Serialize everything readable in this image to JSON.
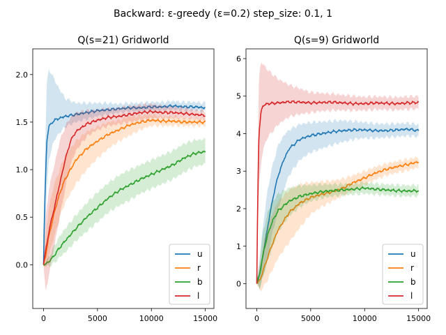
{
  "suptitle": "Backward: ε-greedy (ε=0.2) step_size: 0.1, 1",
  "chart_data": [
    {
      "type": "line",
      "title": "Q(s=21) Gridworld",
      "xlabel": "",
      "ylabel": "",
      "xlim": [
        -1000,
        15800
      ],
      "ylim": [
        -0.46,
        2.27
      ],
      "xticks": [
        0,
        5000,
        10000,
        15000
      ],
      "yticks": [
        0.0,
        0.5,
        1.0,
        1.5,
        2.0
      ],
      "xtick_labels": [
        "0",
        "5000",
        "10000",
        "15000"
      ],
      "ytick_labels": [
        "0.0",
        "0.5",
        "1.0",
        "1.5",
        "2.0"
      ],
      "grid": false,
      "legend_position": "lower-right",
      "series": [
        {
          "name": "u",
          "color": "#1f77b4",
          "x": [
            0,
            100,
            300,
            500,
            800,
            1200,
            2000,
            3000,
            4000,
            5000,
            6000,
            7000,
            8000,
            9000,
            10000,
            11000,
            12000,
            13000,
            14000,
            15000
          ],
          "y": [
            0.0,
            0.6,
            1.3,
            1.45,
            1.5,
            1.53,
            1.56,
            1.58,
            1.6,
            1.62,
            1.63,
            1.64,
            1.65,
            1.65,
            1.66,
            1.66,
            1.67,
            1.66,
            1.66,
            1.65
          ],
          "lower": [
            0.0,
            0.2,
            0.8,
            1.1,
            1.25,
            1.35,
            1.45,
            1.5,
            1.53,
            1.56,
            1.58,
            1.6,
            1.61,
            1.61,
            1.62,
            1.62,
            1.63,
            1.62,
            1.62,
            1.61
          ],
          "upper": [
            0.0,
            1.0,
            1.9,
            2.05,
            2.0,
            1.9,
            1.75,
            1.7,
            1.7,
            1.7,
            1.7,
            1.69,
            1.7,
            1.7,
            1.71,
            1.71,
            1.72,
            1.71,
            1.71,
            1.7
          ]
        },
        {
          "name": "r",
          "color": "#ff7f0e",
          "x": [
            0,
            200,
            500,
            1000,
            1500,
            2000,
            3000,
            4000,
            5000,
            6000,
            7000,
            8000,
            9000,
            10000,
            11000,
            12000,
            13000,
            14000,
            15000
          ],
          "y": [
            0.0,
            0.1,
            0.3,
            0.55,
            0.75,
            0.9,
            1.1,
            1.22,
            1.3,
            1.37,
            1.42,
            1.47,
            1.5,
            1.52,
            1.51,
            1.51,
            1.5,
            1.5,
            1.5
          ],
          "lower": [
            0.0,
            -0.05,
            0.1,
            0.3,
            0.5,
            0.65,
            0.85,
            1.0,
            1.12,
            1.22,
            1.3,
            1.36,
            1.42,
            1.46,
            1.46,
            1.46,
            1.46,
            1.46,
            1.46
          ],
          "upper": [
            0.0,
            0.3,
            0.6,
            0.85,
            1.0,
            1.15,
            1.3,
            1.4,
            1.45,
            1.5,
            1.52,
            1.56,
            1.57,
            1.58,
            1.56,
            1.56,
            1.55,
            1.54,
            1.54
          ]
        },
        {
          "name": "b",
          "color": "#2ca02c",
          "x": [
            0,
            500,
            1000,
            1500,
            2000,
            3000,
            4000,
            5000,
            6000,
            7000,
            8000,
            9000,
            10000,
            11000,
            12000,
            13000,
            14000,
            15000
          ],
          "y": [
            0.0,
            0.03,
            0.1,
            0.18,
            0.25,
            0.38,
            0.5,
            0.6,
            0.7,
            0.78,
            0.84,
            0.9,
            0.95,
            1.0,
            1.05,
            1.12,
            1.17,
            1.19
          ],
          "lower": [
            0.0,
            -0.02,
            0.02,
            0.08,
            0.13,
            0.25,
            0.35,
            0.45,
            0.55,
            0.62,
            0.68,
            0.75,
            0.8,
            0.85,
            0.9,
            0.97,
            1.03,
            1.06
          ],
          "upper": [
            0.0,
            0.08,
            0.2,
            0.3,
            0.38,
            0.52,
            0.65,
            0.76,
            0.86,
            0.94,
            1.0,
            1.05,
            1.1,
            1.15,
            1.2,
            1.27,
            1.31,
            1.32
          ]
        },
        {
          "name": "l",
          "color": "#d62728",
          "x": [
            0,
            200,
            500,
            1000,
            1500,
            2000,
            2500,
            3000,
            4000,
            5000,
            6000,
            7000,
            8000,
            9000,
            10000,
            11000,
            12000,
            13000,
            14000,
            15000
          ],
          "y": [
            0.0,
            0.15,
            0.35,
            0.6,
            0.85,
            1.1,
            1.3,
            1.4,
            1.48,
            1.52,
            1.55,
            1.56,
            1.58,
            1.6,
            1.61,
            1.6,
            1.6,
            1.59,
            1.58,
            1.57
          ],
          "lower": [
            0.0,
            -0.3,
            -0.1,
            0.2,
            0.5,
            0.8,
            1.05,
            1.2,
            1.35,
            1.42,
            1.46,
            1.48,
            1.5,
            1.52,
            1.54,
            1.54,
            1.54,
            1.54,
            1.53,
            1.52
          ],
          "upper": [
            0.0,
            0.5,
            0.8,
            1.05,
            1.3,
            1.45,
            1.55,
            1.6,
            1.62,
            1.63,
            1.64,
            1.65,
            1.67,
            1.68,
            1.69,
            1.67,
            1.66,
            1.65,
            1.63,
            1.62
          ]
        }
      ]
    },
    {
      "type": "line",
      "title": "Q(s=9) Gridworld",
      "xlabel": "",
      "ylabel": "",
      "xlim": [
        -1000,
        15800
      ],
      "ylim": [
        -0.66,
        6.26
      ],
      "xticks": [
        0,
        5000,
        10000,
        15000
      ],
      "yticks": [
        0,
        1,
        2,
        3,
        4,
        5,
        6
      ],
      "xtick_labels": [
        "0",
        "5000",
        "10000",
        "15000"
      ],
      "ytick_labels": [
        "0",
        "1",
        "2",
        "3",
        "4",
        "5",
        "6"
      ],
      "grid": false,
      "legend_position": "lower-right",
      "series": [
        {
          "name": "u",
          "color": "#1f77b4",
          "x": [
            0,
            300,
            600,
            1000,
            1500,
            2000,
            2500,
            3000,
            4000,
            5000,
            6000,
            7000,
            8000,
            9000,
            10000,
            11000,
            12000,
            13000,
            14000,
            15000
          ],
          "y": [
            0.0,
            0.3,
            0.8,
            1.5,
            2.3,
            2.9,
            3.3,
            3.6,
            3.85,
            3.95,
            4.0,
            4.05,
            4.08,
            4.1,
            4.1,
            4.08,
            4.08,
            4.1,
            4.12,
            4.08
          ],
          "lower": [
            0.0,
            -0.1,
            0.2,
            0.7,
            1.4,
            2.0,
            2.5,
            2.9,
            3.3,
            3.5,
            3.6,
            3.7,
            3.78,
            3.85,
            3.88,
            3.88,
            3.9,
            3.92,
            3.94,
            3.92
          ],
          "upper": [
            0.0,
            0.8,
            1.6,
            2.5,
            3.2,
            3.7,
            3.95,
            4.1,
            4.25,
            4.3,
            4.32,
            4.34,
            4.35,
            4.33,
            4.3,
            4.27,
            4.26,
            4.27,
            4.28,
            4.24
          ]
        },
        {
          "name": "r",
          "color": "#ff7f0e",
          "x": [
            0,
            300,
            600,
            1000,
            1500,
            2000,
            3000,
            4000,
            5000,
            6000,
            7000,
            8000,
            9000,
            10000,
            11000,
            12000,
            13000,
            14000,
            15000
          ],
          "y": [
            0.0,
            0.1,
            0.35,
            0.7,
            1.1,
            1.45,
            1.9,
            2.15,
            2.3,
            2.38,
            2.45,
            2.55,
            2.7,
            2.82,
            2.95,
            3.05,
            3.12,
            3.18,
            3.25
          ],
          "lower": [
            0.0,
            -0.2,
            -0.1,
            0.1,
            0.4,
            0.7,
            1.1,
            1.5,
            1.85,
            2.05,
            2.2,
            2.35,
            2.5,
            2.63,
            2.78,
            2.88,
            2.96,
            3.02,
            3.1
          ],
          "upper": [
            0.0,
            0.5,
            1.0,
            1.5,
            1.9,
            2.2,
            2.5,
            2.65,
            2.7,
            2.72,
            2.75,
            2.8,
            2.9,
            3.0,
            3.12,
            3.2,
            3.27,
            3.32,
            3.38
          ]
        },
        {
          "name": "b",
          "color": "#2ca02c",
          "x": [
            0,
            300,
            600,
            1000,
            1500,
            2000,
            3000,
            4000,
            5000,
            6000,
            7000,
            8000,
            9000,
            10000,
            11000,
            12000,
            13000,
            14000,
            15000
          ],
          "y": [
            0.0,
            0.3,
            0.8,
            1.3,
            1.7,
            1.95,
            2.2,
            2.33,
            2.4,
            2.45,
            2.48,
            2.5,
            2.52,
            2.55,
            2.52,
            2.5,
            2.48,
            2.47,
            2.48
          ],
          "lower": [
            0.0,
            -0.1,
            0.2,
            0.6,
            1.0,
            1.4,
            1.8,
            2.05,
            2.2,
            2.28,
            2.33,
            2.36,
            2.38,
            2.4,
            2.38,
            2.36,
            2.34,
            2.33,
            2.34
          ],
          "upper": [
            0.0,
            0.7,
            1.4,
            1.9,
            2.2,
            2.4,
            2.55,
            2.62,
            2.63,
            2.65,
            2.65,
            2.66,
            2.67,
            2.7,
            2.67,
            2.65,
            2.63,
            2.62,
            2.63
          ]
        },
        {
          "name": "l",
          "color": "#d62728",
          "x": [
            0,
            100,
            200,
            400,
            600,
            1000,
            2000,
            3000,
            4000,
            5000,
            6000,
            7000,
            8000,
            9000,
            10000,
            11000,
            12000,
            13000,
            14000,
            15000
          ],
          "y": [
            0.0,
            2.5,
            4.0,
            4.6,
            4.75,
            4.8,
            4.82,
            4.85,
            4.84,
            4.82,
            4.83,
            4.84,
            4.82,
            4.8,
            4.8,
            4.82,
            4.81,
            4.8,
            4.82,
            4.83
          ],
          "lower": [
            0.0,
            1.5,
            2.5,
            3.2,
            3.6,
            3.9,
            4.25,
            4.45,
            4.52,
            4.56,
            4.6,
            4.62,
            4.62,
            4.62,
            4.62,
            4.64,
            4.64,
            4.63,
            4.65,
            4.66
          ],
          "upper": [
            0.0,
            3.5,
            5.5,
            5.9,
            5.85,
            5.7,
            5.45,
            5.3,
            5.2,
            5.1,
            5.08,
            5.06,
            5.03,
            5.0,
            4.98,
            4.99,
            4.98,
            4.97,
            4.99,
            5.0
          ]
        }
      ]
    }
  ]
}
